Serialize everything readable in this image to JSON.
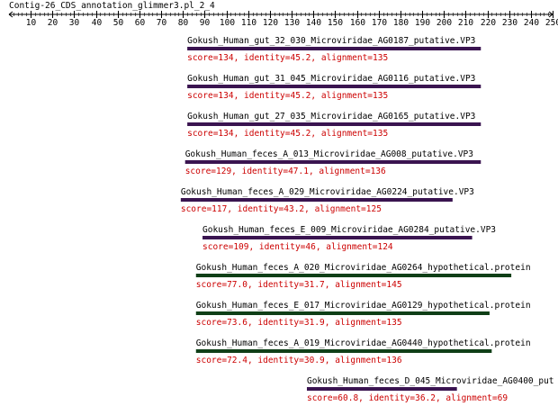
{
  "title": "Contig-26_CDS_annotation_glimmer3.pl_2_4",
  "chart_data": {
    "type": "alignment-track",
    "axis": {
      "min": 0,
      "max": 250,
      "major_ticks": [
        10,
        20,
        30,
        40,
        50,
        60,
        70,
        80,
        90,
        100,
        110,
        120,
        130,
        140,
        150,
        160,
        170,
        180,
        190,
        200,
        210,
        220,
        230,
        240,
        250
      ]
    },
    "hits": [
      {
        "name": "Gokush_Human_gut_32_030_Microviridae_AG0187_putative.VP3",
        "score_text": "score=134, identity=45.2, alignment=135",
        "start": 82,
        "end": 217,
        "color": "#3a1450"
      },
      {
        "name": "Gokush_Human_gut_31_045_Microviridae_AG0116_putative.VP3",
        "score_text": "score=134, identity=45.2, alignment=135",
        "start": 82,
        "end": 217,
        "color": "#3a1450"
      },
      {
        "name": "Gokush_Human_gut_27_035_Microviridae_AG0165_putative.VP3",
        "score_text": "score=134, identity=45.2, alignment=135",
        "start": 82,
        "end": 217,
        "color": "#3a1450"
      },
      {
        "name": "Gokush_Human_feces_A_013_Microviridae_AG008_putative.VP3",
        "score_text": "score=129, identity=47.1, alignment=136",
        "start": 81,
        "end": 217,
        "color": "#3a1450"
      },
      {
        "name": "Gokush_Human_feces_A_029_Microviridae_AG0224_putative.VP3",
        "score_text": "score=117, identity=43.2, alignment=125",
        "start": 79,
        "end": 204,
        "color": "#3a1450"
      },
      {
        "name": "Gokush_Human_feces_E_009_Microviridae_AG0284_putative.VP3",
        "score_text": "score=109, identity=46, alignment=124",
        "start": 89,
        "end": 213,
        "color": "#3a1450"
      },
      {
        "name": "Gokush_Human_feces_A_020_Microviridae_AG0264_hypothetical.protein",
        "score_text": "score=77.0, identity=31.7, alignment=145",
        "start": 86,
        "end": 231,
        "color": "#0f3f17"
      },
      {
        "name": "Gokush_Human_feces_E_017_Microviridae_AG0129_hypothetical.protein",
        "score_text": "score=73.6, identity=31.9, alignment=135",
        "start": 86,
        "end": 221,
        "color": "#0f3f17"
      },
      {
        "name": "Gokush_Human_feces_A_019_Microviridae_AG0440_hypothetical.protein",
        "score_text": "score=72.4, identity=30.9, alignment=136",
        "start": 86,
        "end": 222,
        "color": "#0f3f17"
      },
      {
        "name": "Gokush_Human_feces_D_045_Microviridae_AG0400_put",
        "score_text": "score=60.8, identity=36.2, alignment=69",
        "start": 137,
        "end": 206,
        "color": "#3a1450"
      }
    ]
  }
}
